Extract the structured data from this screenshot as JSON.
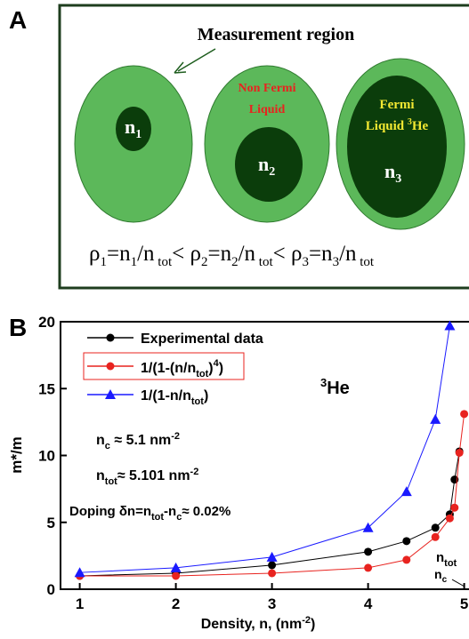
{
  "panel_a": {
    "label": "A",
    "title": "Measurement region",
    "n1": [
      "n",
      "1"
    ],
    "n2": [
      "n",
      "2"
    ],
    "n3": [
      "n",
      "3"
    ],
    "non_fermi": [
      "Non Fermi",
      "Liquid"
    ],
    "fermi": [
      "Fermi",
      "Liquid ",
      "3",
      "He"
    ],
    "formula": [
      "ρ",
      "1",
      "=n",
      "1",
      "/n",
      " tot",
      "< ρ",
      "2",
      "=n",
      "2",
      "/n",
      " tot",
      "< ρ",
      "3",
      "=n",
      "3",
      "/n",
      " tot"
    ]
  },
  "chart_data": {
    "type": "line",
    "panel_label": "B",
    "x_label": [
      "Density, n, (nm",
      "-2",
      ")"
    ],
    "y_label": "m*/m",
    "xlim": [
      0.8,
      5.05
    ],
    "xticks": [
      1,
      2,
      3,
      4,
      5
    ],
    "ylim": [
      0,
      20
    ],
    "yticks": [
      0,
      5,
      10,
      15,
      20
    ],
    "series": [
      {
        "name": [
          "Experimental data"
        ],
        "color": "#000000",
        "marker": "circle",
        "x": [
          1,
          2,
          3,
          4,
          4.4,
          4.7,
          4.85,
          4.9,
          4.95
        ],
        "values": [
          1.0,
          1.2,
          1.8,
          2.8,
          3.6,
          4.6,
          5.6,
          8.2,
          10.3
        ]
      },
      {
        "name": [
          "1/(1-(n/n",
          "tot",
          ")",
          "4",
          ")"
        ],
        "color": "#e8231f",
        "marker": "circle",
        "x": [
          1,
          2,
          3,
          4,
          4.4,
          4.7,
          4.85,
          4.9,
          4.95,
          5.0
        ],
        "values": [
          1.0,
          1.0,
          1.2,
          1.6,
          2.2,
          3.9,
          5.3,
          6.1,
          10.2,
          13.1
        ]
      },
      {
        "name": [
          "1/(1-n/n",
          "tot",
          ")"
        ],
        "color": "#1a1aff",
        "marker": "triangle",
        "x": [
          1,
          2,
          3,
          4,
          4.4,
          4.7,
          4.85
        ],
        "values": [
          1.25,
          1.6,
          2.4,
          4.6,
          7.3,
          12.7,
          19.7
        ]
      }
    ],
    "annotations": {
      "he3": [
        "3",
        "He"
      ],
      "nc": [
        "n",
        "c",
        " ≈ 5.1 nm",
        "-2"
      ],
      "ntot": [
        "n",
        "tot",
        "≈ 5.101 nm",
        "-2"
      ],
      "doping": [
        "Doping δn=n",
        "tot",
        "-n",
        "c",
        "≈ 0.02%"
      ],
      "ntot_mark": [
        "n",
        "tot"
      ],
      "nc_mark": [
        "n",
        "c"
      ]
    }
  }
}
